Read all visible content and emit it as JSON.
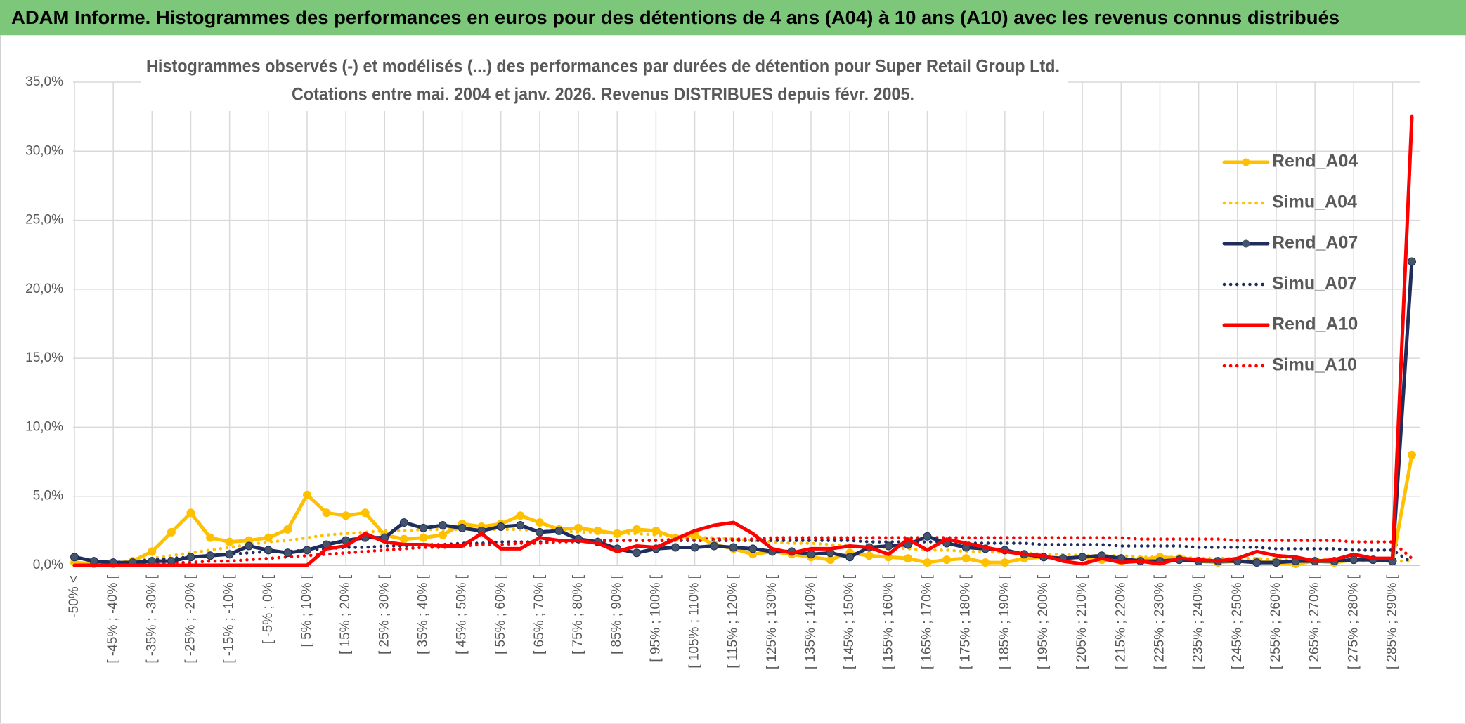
{
  "chart_data": {
    "type": "line",
    "header": "ADAM Informe. Histogrammes des performances en euros pour des détentions de 4 ans (A04) à 10 ans (A10) avec les revenus connus distribués",
    "title": "Histogrammes observés (-) et modélisés (...) des performances par durées de détention pour Super Retail Group Ltd.",
    "subtitle": "Cotations entre mai. 2004 et janv. 2026. Revenus DISTRIBUES depuis févr. 2005.",
    "categories": [
      "-50% <",
      null,
      "[ -45% ; -40% [",
      null,
      "[ -35% ; -30% [",
      null,
      "[ -25% ; -20% [",
      null,
      "[ -15% ; -10% [",
      null,
      "[ -5% ; 0% [",
      null,
      "[ 5% ; 10% [",
      null,
      "[ 15% ; 20% [",
      null,
      "[ 25% ; 30% [",
      null,
      "[ 35% ; 40% [",
      null,
      "[ 45% ; 50% [",
      null,
      "[ 55% ; 60% [",
      null,
      "[ 65% ; 70% [",
      null,
      "[ 75% ; 80% [",
      null,
      "[ 85% ; 90% [",
      null,
      "[ 95% ; 100% [",
      null,
      "[ 105% ; 110% [",
      null,
      "[ 115% ; 120% [",
      null,
      "[ 125% ; 130% [",
      null,
      "[ 135% ; 140% [",
      null,
      "[ 145% ; 150% [",
      null,
      "[ 155% ; 160% [",
      null,
      "[ 165% ; 170% [",
      null,
      "[ 175% ; 180% [",
      null,
      "[ 185% ; 190% [",
      null,
      "[ 195% ; 200% [",
      null,
      "[ 205% ; 210% [",
      null,
      "[ 215% ; 220% [",
      null,
      "[ 225% ; 230% [",
      null,
      "[ 235% ; 240% [",
      null,
      "[ 245% ; 250% [",
      null,
      "[ 255% ; 260% [",
      null,
      "[ 265% ; 270% [",
      null,
      "[ 275% ; 280% [",
      null,
      "[ 285% ; 290% [",
      null
    ],
    "series": [
      {
        "name": "Rend_A04",
        "color": "#ffc000",
        "dash": "solid",
        "marker": true,
        "values": [
          0.2,
          0.1,
          0.1,
          0.3,
          1.0,
          2.4,
          3.8,
          2.0,
          1.7,
          1.8,
          2.0,
          2.6,
          5.1,
          3.8,
          3.6,
          3.8,
          2.2,
          1.9,
          2.0,
          2.2,
          3.0,
          2.8,
          3.0,
          3.6,
          3.1,
          2.6,
          2.7,
          2.5,
          2.3,
          2.6,
          2.5,
          2.0,
          2.2,
          1.5,
          1.2,
          0.8,
          1.0,
          0.8,
          0.6,
          0.4,
          0.9,
          0.7,
          0.6,
          0.5,
          0.2,
          0.4,
          0.5,
          0.2,
          0.2,
          0.5,
          0.6,
          0.5,
          0.6,
          0.4,
          0.3,
          0.4,
          0.6,
          0.5,
          0.3,
          0.2,
          0.3,
          0.3,
          0.2,
          0.1,
          0.3,
          0.2,
          0.4,
          0.4,
          0.3,
          8.0
        ]
      },
      {
        "name": "Simu_A04",
        "color": "#ffc000",
        "dash": "dotted",
        "marker": false,
        "values": [
          0.0,
          0.1,
          0.2,
          0.3,
          0.5,
          0.7,
          0.9,
          1.1,
          1.3,
          1.5,
          1.7,
          1.8,
          2.0,
          2.2,
          2.3,
          2.4,
          2.5,
          2.5,
          2.6,
          2.6,
          2.6,
          2.6,
          2.6,
          2.6,
          2.5,
          2.5,
          2.4,
          2.4,
          2.3,
          2.3,
          2.2,
          2.1,
          2.0,
          2.0,
          1.9,
          1.8,
          1.7,
          1.6,
          1.6,
          1.5,
          1.4,
          1.3,
          1.3,
          1.2,
          1.1,
          1.1,
          1.0,
          1.0,
          0.9,
          0.9,
          0.8,
          0.8,
          0.7,
          0.7,
          0.7,
          0.6,
          0.6,
          0.6,
          0.5,
          0.5,
          0.5,
          0.5,
          0.4,
          0.4,
          0.4,
          0.4,
          0.3,
          0.3,
          0.3,
          0.3
        ]
      },
      {
        "name": "Rend_A07",
        "color": "#1f2d5c",
        "dash": "solid",
        "marker": true,
        "values": [
          0.6,
          0.3,
          0.2,
          0.2,
          0.3,
          0.3,
          0.6,
          0.7,
          0.8,
          1.4,
          1.1,
          0.9,
          1.1,
          1.5,
          1.8,
          2.0,
          2.0,
          3.1,
          2.7,
          2.9,
          2.7,
          2.5,
          2.8,
          2.9,
          2.4,
          2.5,
          1.9,
          1.7,
          1.2,
          0.9,
          1.2,
          1.3,
          1.3,
          1.4,
          1.3,
          1.2,
          1.0,
          1.0,
          0.8,
          0.9,
          0.6,
          1.3,
          1.4,
          1.5,
          2.1,
          1.6,
          1.3,
          1.2,
          1.1,
          0.8,
          0.6,
          0.5,
          0.6,
          0.7,
          0.5,
          0.3,
          0.3,
          0.4,
          0.3,
          0.3,
          0.3,
          0.2,
          0.2,
          0.3,
          0.3,
          0.3,
          0.4,
          0.4,
          0.3,
          22.0
        ]
      },
      {
        "name": "Simu_A07",
        "color": "#1f2d5c",
        "dash": "dotted",
        "marker": false,
        "values": [
          0.1,
          0.1,
          0.2,
          0.3,
          0.4,
          0.5,
          0.6,
          0.7,
          0.8,
          0.9,
          1.0,
          1.0,
          1.1,
          1.2,
          1.3,
          1.3,
          1.4,
          1.4,
          1.5,
          1.5,
          1.6,
          1.6,
          1.7,
          1.7,
          1.7,
          1.8,
          1.8,
          1.8,
          1.8,
          1.8,
          1.8,
          1.8,
          1.8,
          1.8,
          1.8,
          1.8,
          1.8,
          1.8,
          1.8,
          1.8,
          1.8,
          1.7,
          1.7,
          1.7,
          1.7,
          1.7,
          1.6,
          1.6,
          1.6,
          1.6,
          1.5,
          1.5,
          1.5,
          1.5,
          1.4,
          1.4,
          1.4,
          1.4,
          1.3,
          1.3,
          1.3,
          1.3,
          1.2,
          1.2,
          1.2,
          1.2,
          1.1,
          1.1,
          1.1,
          0.2
        ]
      },
      {
        "name": "Rend_A10",
        "color": "#ff0000",
        "dash": "solid",
        "marker": false,
        "values": [
          0.0,
          0.0,
          0.0,
          0.0,
          0.0,
          0.0,
          0.0,
          0.0,
          0.0,
          0.0,
          0.0,
          0.0,
          0.0,
          1.2,
          1.4,
          2.3,
          1.7,
          1.5,
          1.5,
          1.4,
          1.4,
          2.3,
          1.2,
          1.2,
          2.0,
          1.8,
          1.8,
          1.6,
          1.0,
          1.4,
          1.3,
          1.9,
          2.5,
          2.9,
          3.1,
          2.3,
          1.2,
          0.9,
          1.2,
          1.2,
          1.4,
          1.3,
          0.8,
          1.9,
          1.1,
          1.9,
          1.6,
          1.3,
          1.0,
          0.8,
          0.7,
          0.3,
          0.1,
          0.5,
          0.2,
          0.3,
          0.1,
          0.5,
          0.4,
          0.3,
          0.5,
          1.0,
          0.7,
          0.6,
          0.3,
          0.4,
          0.8,
          0.5,
          0.5,
          32.5
        ]
      },
      {
        "name": "Simu_A10",
        "color": "#ff0000",
        "dash": "dotted",
        "marker": false,
        "values": [
          0.0,
          0.0,
          0.1,
          0.1,
          0.1,
          0.2,
          0.2,
          0.3,
          0.3,
          0.4,
          0.5,
          0.6,
          0.7,
          0.8,
          0.9,
          1.0,
          1.1,
          1.2,
          1.3,
          1.3,
          1.4,
          1.5,
          1.5,
          1.6,
          1.6,
          1.7,
          1.7,
          1.7,
          1.8,
          1.8,
          1.8,
          1.9,
          1.9,
          1.9,
          1.9,
          1.9,
          2.0,
          2.0,
          2.0,
          2.0,
          2.0,
          2.0,
          2.0,
          2.0,
          2.0,
          2.0,
          2.0,
          2.0,
          2.0,
          2.0,
          2.0,
          2.0,
          2.0,
          2.0,
          2.0,
          1.9,
          1.9,
          1.9,
          1.9,
          1.9,
          1.8,
          1.8,
          1.8,
          1.8,
          1.8,
          1.8,
          1.7,
          1.7,
          1.7,
          0.5
        ]
      }
    ],
    "ylim": [
      0,
      35
    ],
    "yticks": [
      {
        "value": 0,
        "label": "0,0%"
      },
      {
        "value": 5,
        "label": "5,0%"
      },
      {
        "value": 10,
        "label": "10,0%"
      },
      {
        "value": 15,
        "label": "15,0%"
      },
      {
        "value": 20,
        "label": "20,0%"
      },
      {
        "value": 25,
        "label": "25,0%"
      },
      {
        "value": 30,
        "label": "30,0%"
      },
      {
        "value": 35,
        "label": "35,0%"
      }
    ],
    "grid": true,
    "legend": "top-right"
  }
}
